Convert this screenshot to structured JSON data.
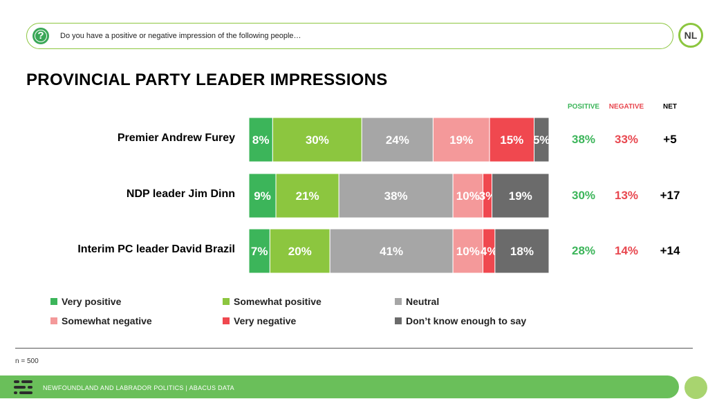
{
  "question": "Do you have a positive or negative impression of the following people…",
  "logo_text": "NL",
  "title": "PROVINCIAL PARTY LEADER IMPRESSIONS",
  "columns": {
    "positive": "POSITIVE",
    "negative": "NEGATIVE",
    "net": "NET"
  },
  "colors": {
    "very_positive": "#3cb55a",
    "somewhat_positive": "#8cc63f",
    "neutral": "#a6a6a6",
    "somewhat_negative": "#f4999a",
    "very_negative": "#f0484f",
    "dont_know": "#6b6b6b",
    "positive_text": "#3cb55a",
    "negative_text": "#e8474f"
  },
  "chart_data": {
    "type": "bar",
    "orientation": "horizontal-stacked",
    "categories": [
      "Premier Andrew Furey",
      "NDP leader Jim Dinn",
      "Interim PC leader David Brazil"
    ],
    "series": [
      {
        "name": "Very positive",
        "values": [
          8,
          9,
          7
        ],
        "labels": [
          "8%",
          "9%",
          "7%"
        ]
      },
      {
        "name": "Somewhat positive",
        "values": [
          30,
          21,
          20
        ],
        "labels": [
          "30%",
          "21%",
          "20%"
        ]
      },
      {
        "name": "Neutral",
        "values": [
          24,
          38,
          41
        ],
        "labels": [
          "24%",
          "38%",
          "41%"
        ]
      },
      {
        "name": "Somewhat negative",
        "values": [
          19,
          10,
          10
        ],
        "labels": [
          "19%",
          "10%",
          "10%"
        ]
      },
      {
        "name": "Very negative",
        "values": [
          15,
          3,
          4
        ],
        "labels": [
          "15%",
          "3%",
          "4%"
        ]
      },
      {
        "name": "Don’t know enough to say",
        "values": [
          5,
          19,
          18
        ],
        "labels": [
          "5%",
          "19%",
          "18%"
        ]
      }
    ],
    "positive": [
      "38%",
      "30%",
      "28%"
    ],
    "negative": [
      "33%",
      "13%",
      "14%"
    ],
    "net": [
      "+5",
      "+17",
      "+14"
    ]
  },
  "sample_note": "n = 500",
  "footer": "NEWFOUNDLAND AND LABRADOR POLITICS  |  ABACUS DATA"
}
